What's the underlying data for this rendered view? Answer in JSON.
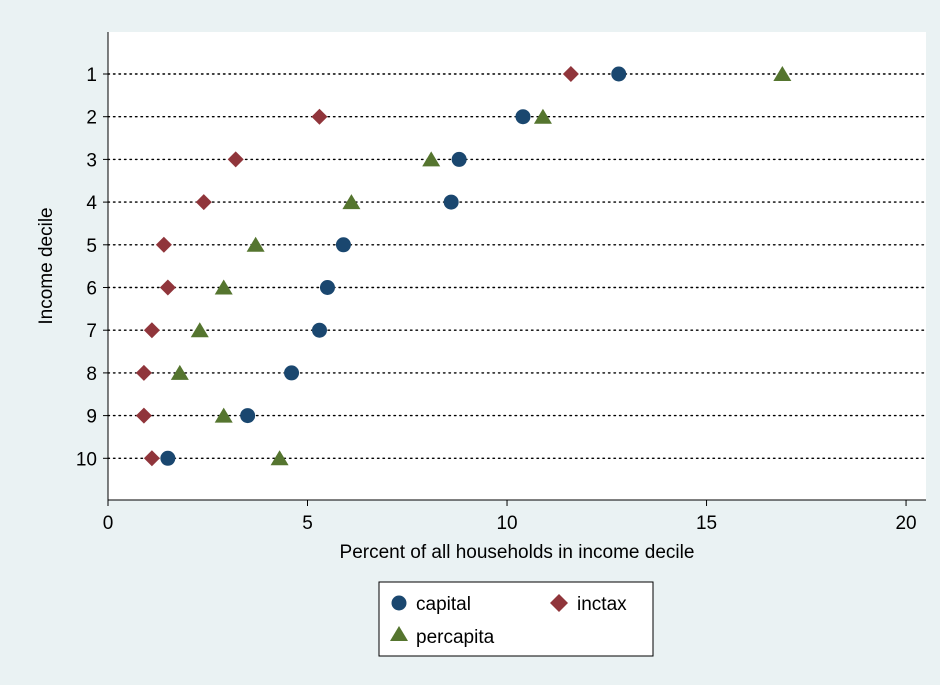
{
  "chart_data": {
    "type": "scatter",
    "orientation": "horizontal-dot-plot",
    "title": "",
    "xlabel": "Percent of all households in income decile",
    "ylabel": "Income decile",
    "xlim": [
      0,
      20.5
    ],
    "x_ticks": [
      0,
      5,
      10,
      15,
      20
    ],
    "categories": [
      "1",
      "2",
      "3",
      "4",
      "5",
      "6",
      "7",
      "8",
      "9",
      "10"
    ],
    "grid": "dotted horizontal lines at each category",
    "legend_position": "bottom",
    "series": [
      {
        "name": "capital",
        "marker": "circle",
        "color": "#1a476f",
        "values": [
          12.8,
          10.4,
          8.8,
          8.6,
          5.9,
          5.5,
          5.3,
          4.6,
          3.5,
          1.5
        ]
      },
      {
        "name": "inctax",
        "marker": "diamond",
        "color": "#90353b",
        "values": [
          11.6,
          5.3,
          3.2,
          2.4,
          1.4,
          1.5,
          1.1,
          0.9,
          0.9,
          1.1
        ]
      },
      {
        "name": "percapita",
        "marker": "triangle",
        "color": "#55752f",
        "values": [
          16.9,
          10.9,
          8.1,
          6.1,
          3.7,
          2.9,
          2.3,
          1.8,
          2.9,
          4.3
        ]
      }
    ]
  }
}
